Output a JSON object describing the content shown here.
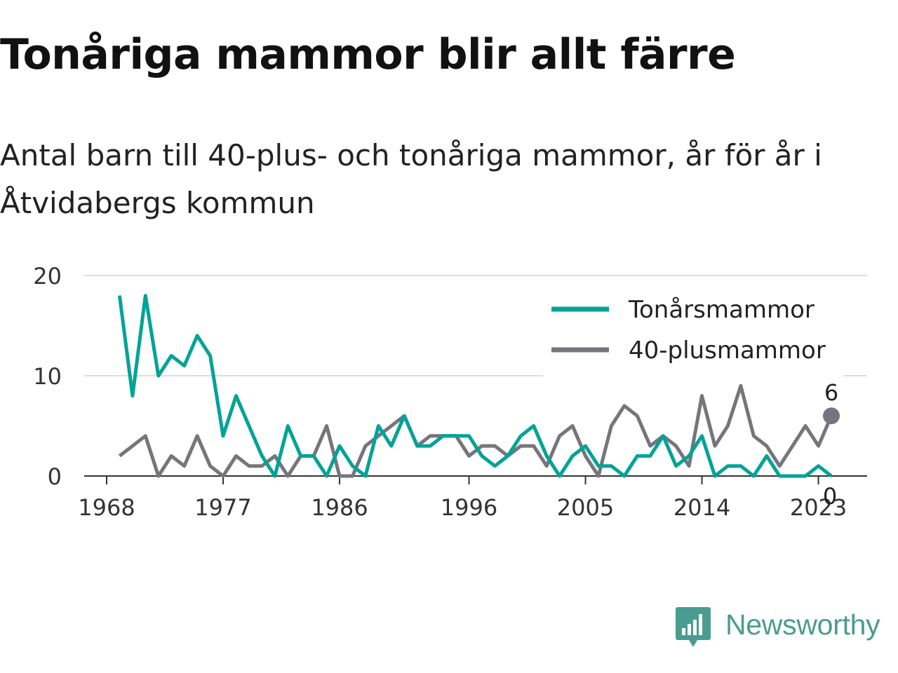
{
  "header": {
    "title": "Tonåriga mammor blir allt färre",
    "subtitle": "Antal barn till 40-plus- och tonåriga mammor, år för år i Åtvidabergs kommun"
  },
  "brand": {
    "name": "Newsworthy",
    "icon": "newsworthy-logo-icon",
    "color": "#4a9c90"
  },
  "chart_data": {
    "type": "line",
    "title": "Tonåriga mammor blir allt färre",
    "subtitle": "Antal barn till 40-plus- och tonåriga mammor, år för år i Åtvidabergs kommun",
    "xlabel": "",
    "ylabel": "",
    "x": [
      1969,
      1970,
      1971,
      1972,
      1973,
      1974,
      1975,
      1976,
      1977,
      1978,
      1979,
      1980,
      1981,
      1982,
      1983,
      1984,
      1985,
      1986,
      1987,
      1988,
      1989,
      1990,
      1991,
      1992,
      1993,
      1994,
      1995,
      1996,
      1997,
      1998,
      1999,
      2000,
      2001,
      2002,
      2003,
      2004,
      2005,
      2006,
      2007,
      2008,
      2009,
      2010,
      2011,
      2012,
      2013,
      2014,
      2015,
      2016,
      2017,
      2018,
      2019,
      2020,
      2021,
      2022,
      2023,
      2024
    ],
    "series": [
      {
        "name": "Tonårsmammor",
        "color": "#00a398",
        "values": [
          18,
          8,
          18,
          10,
          12,
          11,
          14,
          12,
          4,
          8,
          5,
          2,
          0,
          5,
          2,
          2,
          0,
          3,
          1,
          0,
          5,
          3,
          6,
          3,
          3,
          4,
          4,
          4,
          2,
          1,
          2,
          4,
          5,
          2,
          0,
          2,
          3,
          1,
          1,
          0,
          2,
          2,
          4,
          1,
          2,
          4,
          0,
          1,
          1,
          0,
          2,
          0,
          0,
          0,
          1,
          0
        ]
      },
      {
        "name": "40-plusmammor",
        "color": "#76757b",
        "values": [
          2,
          3,
          4,
          0,
          2,
          1,
          4,
          1,
          0,
          2,
          1,
          1,
          2,
          0,
          2,
          2,
          5,
          0,
          0,
          3,
          4,
          5,
          6,
          3,
          4,
          4,
          4,
          2,
          3,
          3,
          2,
          3,
          3,
          1,
          4,
          5,
          2,
          0,
          5,
          7,
          6,
          3,
          4,
          3,
          1,
          8,
          3,
          5,
          9,
          4,
          3,
          1,
          3,
          5,
          3,
          6
        ]
      }
    ],
    "xticks": [
      1968,
      1977,
      1986,
      1996,
      2005,
      2014,
      2023
    ],
    "yticks": [
      0,
      10,
      20
    ],
    "ylim": [
      0,
      20
    ],
    "xlim": [
      1968,
      2024
    ],
    "grid": true,
    "legend": "top-right",
    "end_labels": {
      "Tonårsmammor": "0",
      "40-plusmammor": "6"
    }
  }
}
